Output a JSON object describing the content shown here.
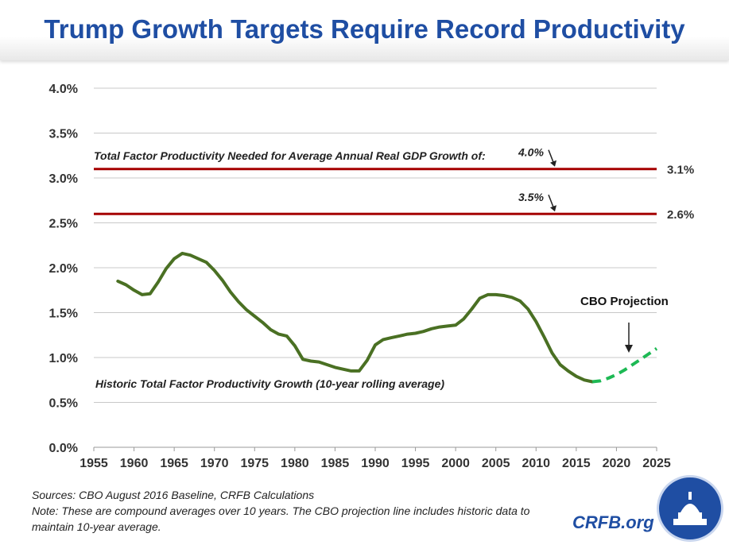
{
  "title": "Trump Growth Targets Require Record Productivity",
  "notes": {
    "sources": "Sources: CBO August 2016 Baseline, CRFB Calculations",
    "note": "Note: These are compound averages over 10 years. The CBO projection line includes historic data to maintain 10-year average."
  },
  "brand": "CRFB.org",
  "chart_data": {
    "type": "line",
    "title": "Trump Growth Targets Require Record Productivity",
    "xlim": [
      1955,
      2025
    ],
    "ylim": [
      0,
      4.0
    ],
    "xticks": [
      "1955",
      "1960",
      "1965",
      "1970",
      "1975",
      "1980",
      "1985",
      "1990",
      "1995",
      "2000",
      "2005",
      "2010",
      "2015",
      "2020",
      "2025"
    ],
    "yticks": [
      "0.0%",
      "0.5%",
      "1.0%",
      "1.5%",
      "2.0%",
      "2.5%",
      "3.0%",
      "3.5%",
      "4.0%"
    ],
    "grid": "horizontal",
    "series": [
      {
        "name": "Historic Total Factor Productivity Growth (10-year rolling average)",
        "color": "#4a7023",
        "style": "solid",
        "x": [
          1958,
          1959,
          1960,
          1961,
          1962,
          1963,
          1964,
          1965,
          1966,
          1967,
          1968,
          1969,
          1970,
          1971,
          1972,
          1973,
          1974,
          1975,
          1976,
          1977,
          1978,
          1979,
          1980,
          1981,
          1982,
          1983,
          1984,
          1985,
          1986,
          1987,
          1988,
          1989,
          1990,
          1991,
          1992,
          1993,
          1994,
          1995,
          1996,
          1997,
          1998,
          1999,
          2000,
          2001,
          2002,
          2003,
          2004,
          2005,
          2006,
          2007,
          2008,
          2009,
          2010,
          2011,
          2012,
          2013,
          2014,
          2015,
          2016,
          2017
        ],
        "values": [
          1.85,
          1.81,
          1.75,
          1.7,
          1.71,
          1.84,
          1.99,
          2.1,
          2.16,
          2.14,
          2.1,
          2.06,
          1.97,
          1.86,
          1.73,
          1.62,
          1.53,
          1.46,
          1.39,
          1.31,
          1.26,
          1.24,
          1.13,
          0.98,
          0.96,
          0.95,
          0.92,
          0.89,
          0.87,
          0.85,
          0.85,
          0.97,
          1.14,
          1.2,
          1.22,
          1.24,
          1.26,
          1.27,
          1.29,
          1.32,
          1.34,
          1.35,
          1.36,
          1.43,
          1.54,
          1.66,
          1.7,
          1.7,
          1.69,
          1.67,
          1.63,
          1.54,
          1.4,
          1.23,
          1.05,
          0.92,
          0.85,
          0.79,
          0.75,
          0.73
        ]
      },
      {
        "name": "CBO Projection",
        "color": "#1db954",
        "style": "dashed",
        "x": [
          2017,
          2018,
          2019,
          2020,
          2021,
          2022,
          2023,
          2024,
          2025
        ],
        "values": [
          0.73,
          0.74,
          0.77,
          0.81,
          0.86,
          0.92,
          0.98,
          1.04,
          1.1
        ]
      }
    ],
    "reference_lines": [
      {
        "value": 3.1,
        "label": "3.1%",
        "growth_label": "4.0%",
        "color": "#a50000"
      },
      {
        "value": 2.6,
        "label": "2.6%",
        "growth_label": "3.5%",
        "color": "#a50000"
      }
    ],
    "annotations": {
      "needed": "Total Factor Productivity Needed for Average Annual Real GDP Growth of:",
      "historic": "Historic Total Factor Productivity Growth (10-year rolling average)",
      "projection": "CBO Projection"
    }
  }
}
